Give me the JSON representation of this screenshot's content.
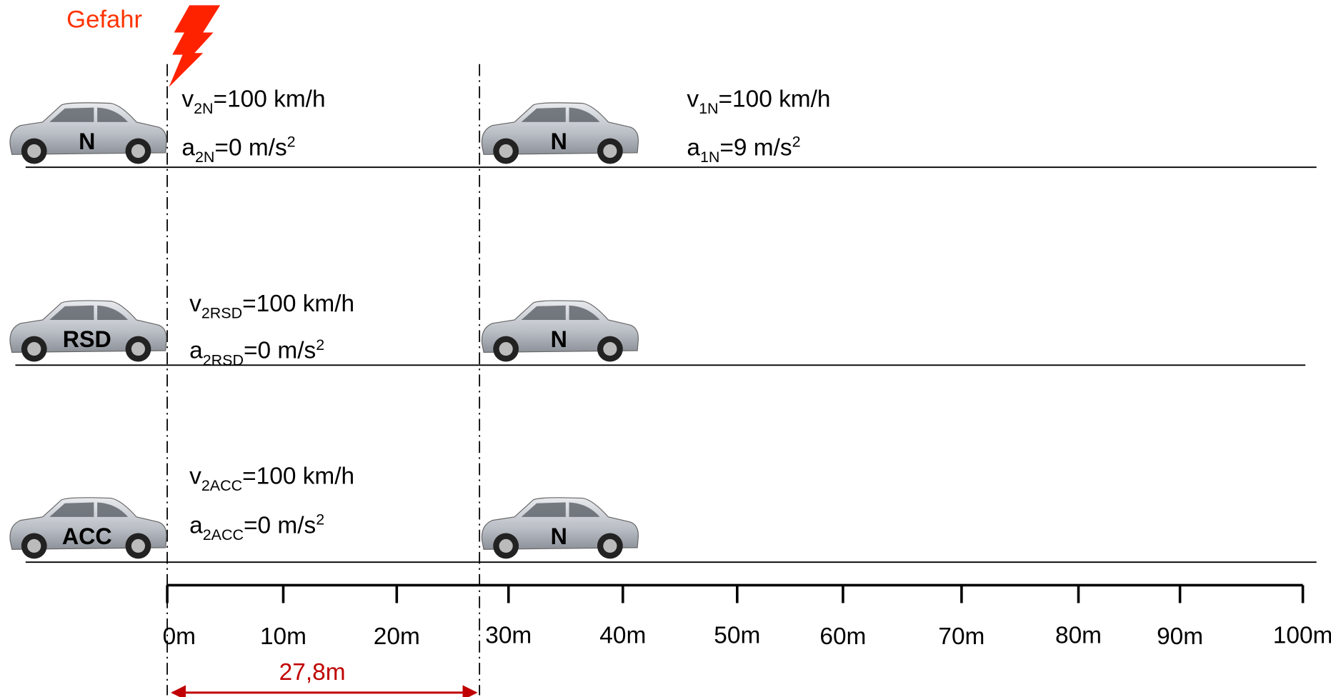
{
  "hazard": "Gefahr",
  "lanes": [
    {
      "rear_car": "N",
      "front_car": "N",
      "rear_labels": [
        {
          "symbol": "v",
          "subscript": "2N",
          "text": "=100 km/h"
        },
        {
          "symbol": "a",
          "subscript": "2N",
          "text": "=0 m/s",
          "superscript": "2"
        }
      ],
      "front_labels": [
        {
          "symbol": "v",
          "subscript": "1N",
          "text": "=100 km/h"
        },
        {
          "symbol": "a",
          "subscript": "1N",
          "text": "=9 m/s",
          "superscript": "2"
        }
      ]
    },
    {
      "rear_car": "RSD",
      "front_car": "N",
      "rear_labels": [
        {
          "symbol": "v",
          "subscript": "2RSD",
          "text": "=100 km/h"
        },
        {
          "symbol": "a",
          "subscript": "2RSD",
          "text": "=0 m/s",
          "superscript": "2"
        }
      ]
    },
    {
      "rear_car": "ACC",
      "front_car": "N",
      "rear_labels": [
        {
          "symbol": "v",
          "subscript": "2ACC",
          "text": "=100 km/h"
        },
        {
          "symbol": "a",
          "subscript": "2ACC",
          "text": "=0 m/s",
          "superscript": "2"
        }
      ]
    }
  ],
  "axis": {
    "ticks": [
      "0m",
      "10m",
      "20m",
      "30m",
      "40m",
      "50m",
      "60m",
      "70m",
      "80m",
      "90m",
      "100m"
    ]
  },
  "gap": "27,8m"
}
